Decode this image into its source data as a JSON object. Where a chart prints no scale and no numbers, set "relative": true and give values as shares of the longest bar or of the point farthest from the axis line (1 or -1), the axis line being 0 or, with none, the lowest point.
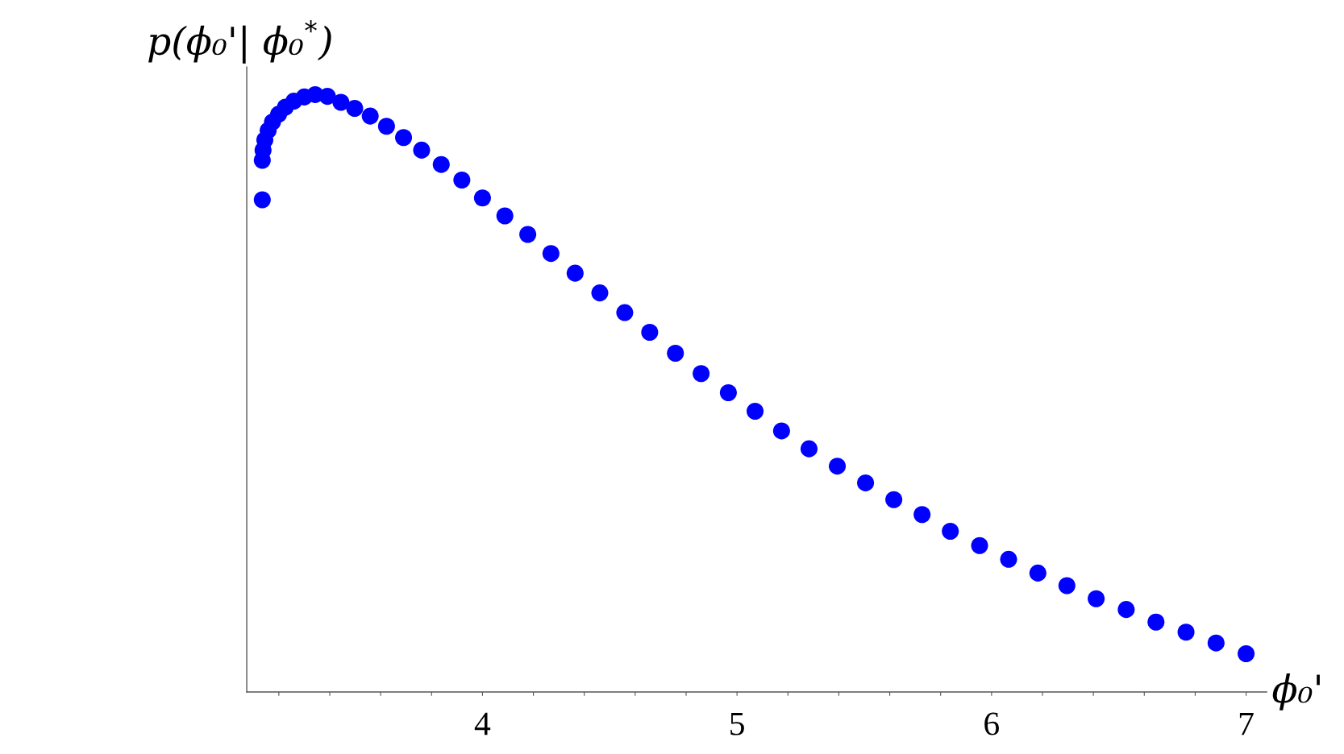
{
  "chart_data": {
    "type": "scatter",
    "relative": true,
    "xlabel": "ϕ₀'",
    "ylabel": "p(ϕ₀'| ϕ₀$^{*}$)",
    "marker": "circle",
    "grid": false,
    "tick_labels": "x",
    "xlim": [
      3.074,
      7.081
    ],
    "xticks": [
      {
        "value": 3.2,
        "label": null
      },
      {
        "value": 3.4,
        "label": null
      },
      {
        "value": 3.6,
        "label": null
      },
      {
        "value": 3.8,
        "label": null
      },
      4,
      {
        "value": 4.2,
        "label": null
      },
      {
        "value": 4.4,
        "label": null
      },
      {
        "value": 4.6,
        "label": null
      },
      {
        "value": 4.8,
        "label": null
      },
      5,
      {
        "value": 5.2,
        "label": null
      },
      {
        "value": 5.4,
        "label": null
      },
      {
        "value": 5.6,
        "label": null
      },
      {
        "value": 5.8,
        "label": null
      },
      6,
      {
        "value": 6.2,
        "label": null
      },
      {
        "value": 6.4,
        "label": null
      },
      {
        "value": 6.6,
        "label": null
      },
      {
        "value": 6.8,
        "label": null
      },
      7
    ],
    "series": [
      {
        "color": "#0000ff",
        "x": [
          3.135,
          3.135,
          3.138,
          3.145,
          3.158,
          3.175,
          3.199,
          3.226,
          3.259,
          3.3,
          3.343,
          3.391,
          3.444,
          3.498,
          3.559,
          3.623,
          3.69,
          3.761,
          3.838,
          3.919,
          4.0,
          4.088,
          4.178,
          4.269,
          4.364,
          4.461,
          4.559,
          4.657,
          4.758,
          4.859,
          4.966,
          5.071,
          5.175,
          5.283,
          5.394,
          5.505,
          5.616,
          5.727,
          5.838,
          5.953,
          6.067,
          6.182,
          6.296,
          6.411,
          6.529,
          6.646,
          6.764,
          6.882,
          7.0
        ],
        "values": [
          0.824,
          0.89,
          0.907,
          0.924,
          0.94,
          0.954,
          0.967,
          0.979,
          0.989,
          0.996,
          1.0,
          0.997,
          0.987,
          0.977,
          0.964,
          0.947,
          0.928,
          0.907,
          0.883,
          0.857,
          0.827,
          0.797,
          0.766,
          0.734,
          0.701,
          0.668,
          0.635,
          0.602,
          0.567,
          0.533,
          0.501,
          0.47,
          0.437,
          0.407,
          0.378,
          0.35,
          0.322,
          0.297,
          0.269,
          0.245,
          0.222,
          0.199,
          0.178,
          0.156,
          0.138,
          0.117,
          0.1,
          0.082,
          0.064
        ]
      }
    ]
  }
}
